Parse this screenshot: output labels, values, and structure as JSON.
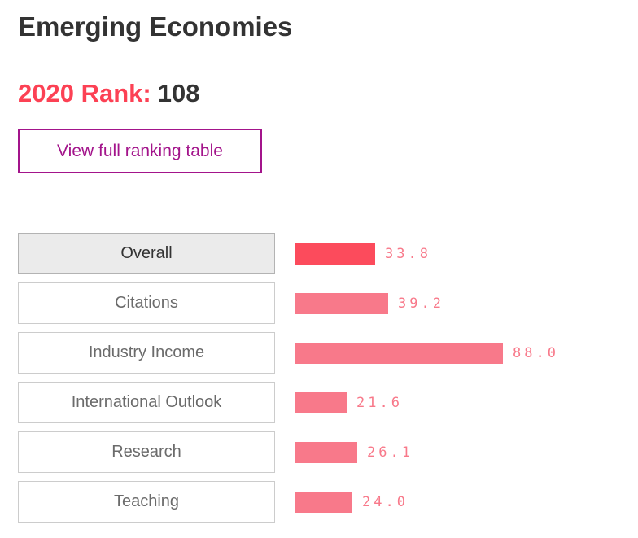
{
  "page": {
    "title": "Emerging Economies",
    "rank_label": "2020 Rank:",
    "rank_value": "108",
    "view_table_button_label": "View full ranking table"
  },
  "colors": {
    "accent_red": "#fc4154",
    "selected_bar": "#fc4b5c",
    "bar_pink": "#f8798a",
    "value_text": "#f8798a",
    "magenta_button": "#a3148b",
    "dark_text": "#333333",
    "gray_text": "#6b6b6b",
    "selected_button_bg": "#ebebeb"
  },
  "chart_data": {
    "type": "bar",
    "orientation": "horizontal",
    "title": "",
    "xlabel": "",
    "ylabel": "",
    "xlim": [
      0,
      100
    ],
    "grid": false,
    "legend": false,
    "categories": [
      "Overall",
      "Citations",
      "Industry Income",
      "International Outlook",
      "Research",
      "Teaching"
    ],
    "values": [
      33.8,
      39.2,
      88.0,
      21.6,
      26.1,
      24.0
    ],
    "value_labels": [
      "33.8",
      "39.2",
      "88.0",
      "21.6",
      "26.1",
      "24.0"
    ],
    "selected_category": "Overall",
    "selected_index": 0
  }
}
